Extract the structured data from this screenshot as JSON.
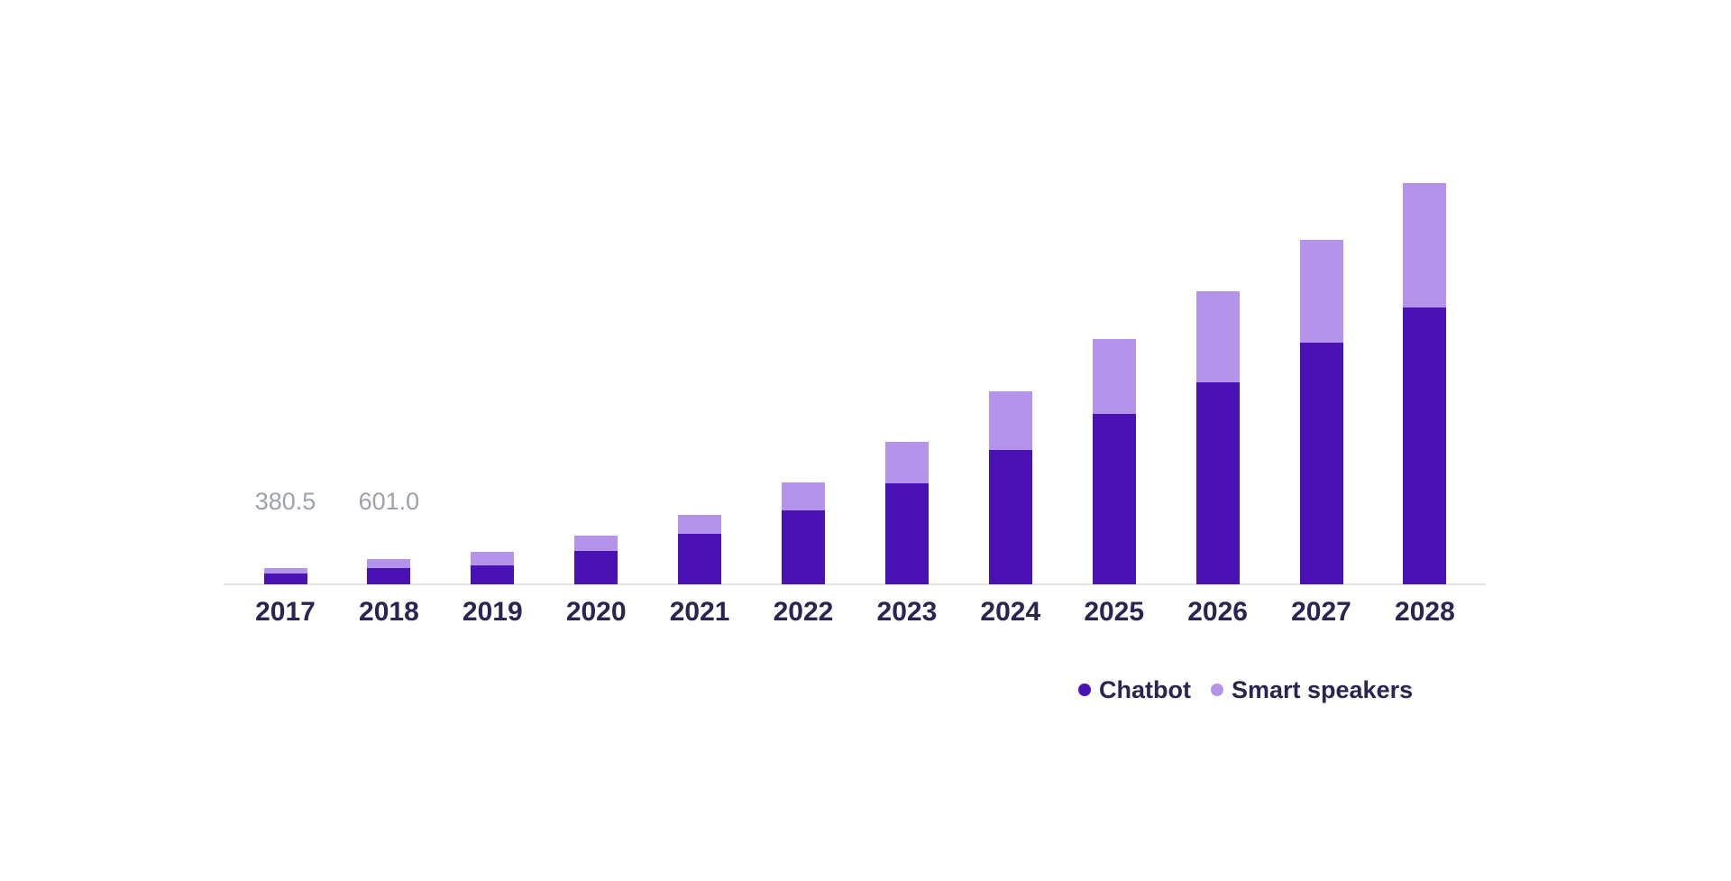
{
  "page": {
    "background_color": "#ffffff"
  },
  "chart_data": {
    "type": "bar",
    "stacked": true,
    "title": "",
    "xlabel": "",
    "ylabel": "",
    "grid": false,
    "axis_line_color": "#e4e4e7",
    "category_label_color": "#2b2352",
    "data_label_color": "#9da0ae",
    "categories": [
      "2017",
      "2018",
      "2019",
      "2020",
      "2021",
      "2022",
      "2023",
      "2024",
      "2025",
      "2026",
      "2027",
      "2028"
    ],
    "series": [
      {
        "name": "Chatbot",
        "color": "#4a12b5",
        "values": [
          259.0,
          390.0,
          447.5,
          789.0,
          1193.0,
          1747.0,
          2387.0,
          3175.0,
          4017.0,
          4773.0,
          5711.0,
          6532.0
        ]
      },
      {
        "name": "Smart speakers",
        "color": "#b494eb",
        "values": [
          121.5,
          211.0,
          320.0,
          352.0,
          448.0,
          661.0,
          980.0,
          1385.0,
          1779.0,
          2152.0,
          2429.0,
          2941.0
        ]
      }
    ],
    "totals": [
      380.5,
      601.0,
      767.5,
      1141.0,
      1641.0,
      2408.0,
      3367.0,
      4560.0,
      5796.0,
      6925.0,
      8140.0,
      9473.0
    ],
    "data_labels": {
      "2017": "380.5",
      "2018": "601.0"
    },
    "ylim": [
      0,
      9500
    ],
    "legend": {
      "position": "bottom-right",
      "items": [
        {
          "label": "Chatbot",
          "color": "#4a12b5"
        },
        {
          "label": "Smart speakers",
          "color": "#b494eb"
        }
      ]
    }
  }
}
